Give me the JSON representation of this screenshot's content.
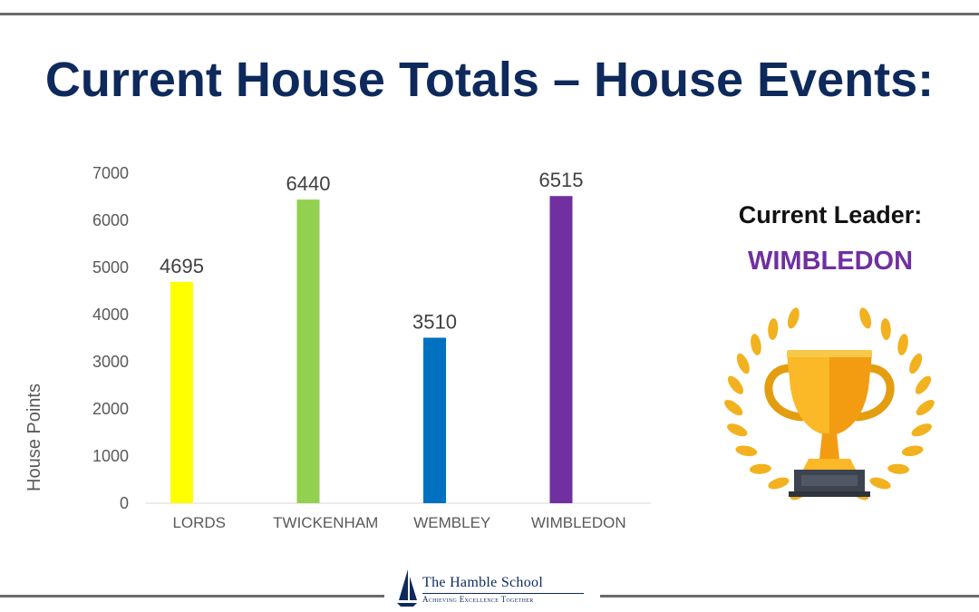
{
  "title": "Current House Totals – House Events:",
  "chart_data": {
    "type": "bar",
    "categories": [
      "LORDS",
      "TWICKENHAM",
      "WEMBLEY",
      "WIMBLEDON"
    ],
    "values": [
      4695,
      6440,
      3510,
      6515
    ],
    "colors": [
      "#ffff00",
      "#92d050",
      "#0070c0",
      "#7030a0"
    ],
    "ylabel": "House Points",
    "ylim": [
      0,
      7000
    ],
    "yticks": [
      0,
      1000,
      2000,
      3000,
      4000,
      5000,
      6000,
      7000
    ],
    "grid": false,
    "data_labels": true
  },
  "leader": {
    "heading": "Current Leader:",
    "name": "WIMBLEDON",
    "icon": "trophy-icon",
    "color": "#7030a0"
  },
  "logo": {
    "name": "The Hamble School",
    "tagline": "Achieving Excellence Together"
  }
}
